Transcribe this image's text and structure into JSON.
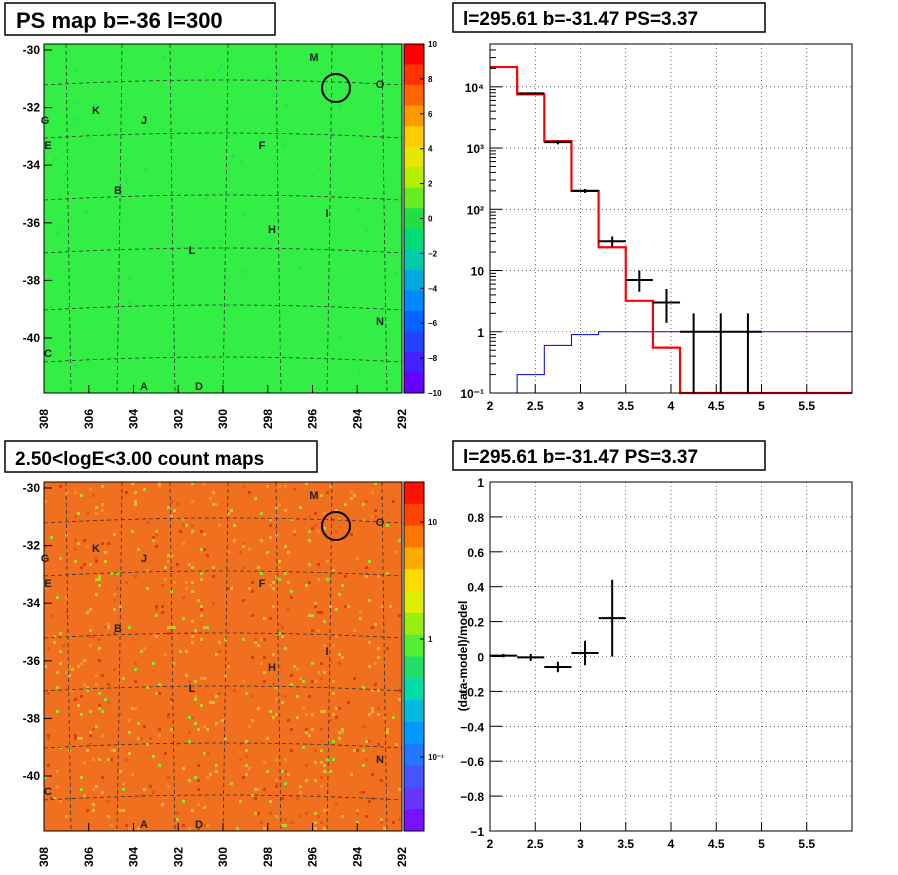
{
  "panels": {
    "ps_map_title": "PS map b=-36 l=300",
    "count_map_title": "2.50<logE<3.00 count maps",
    "spectrum_title": "l=295.61 b=-31.47 PS=3.37",
    "residual_title": "l=295.61 b=-31.47 PS=3.37"
  },
  "maps": {
    "x_ticks": [
      "308",
      "306",
      "304",
      "302",
      "300",
      "298",
      "296",
      "294",
      "292"
    ],
    "y_ticks": [
      "-30",
      "-32",
      "-34",
      "-36",
      "-38",
      "-40"
    ],
    "ps_colorbar_ticks": [
      "10",
      "8",
      "6",
      "4",
      "2",
      "0",
      "−2",
      "−4",
      "−6",
      "−8",
      "−10"
    ],
    "count_colorbar_ticks": [
      "10",
      "1",
      "10⁻¹"
    ],
    "sources": [
      "M",
      "O",
      "G",
      "K",
      "J",
      "E",
      "F",
      "B",
      "I",
      "H",
      "L",
      "N",
      "C",
      "A",
      "D"
    ],
    "colors": {
      "ps_background": "#33ee44",
      "count_background": "#f07020",
      "circle": "#000000"
    }
  },
  "chart_data": [
    {
      "type": "line",
      "title": "l=295.61 b=-31.47 PS=3.37",
      "xlim": [
        2,
        6
      ],
      "ylim": [
        0.1,
        50000
      ],
      "yscale": "log",
      "grid": true,
      "x_ticks": [
        "2",
        "2.5",
        "3",
        "3.5",
        "4",
        "4.5",
        "5",
        "5.5"
      ],
      "y_ticks": [
        "10⁻¹",
        "1",
        "10",
        "10²",
        "10³",
        "10⁴"
      ],
      "series": [
        {
          "color": "#ff0000",
          "edges": [
            2,
            2.3,
            2.6,
            2.9,
            3.2,
            3.5,
            3.8,
            4.1,
            4.4,
            6
          ],
          "values": [
            21000,
            7500,
            1300,
            200,
            24,
            3.2,
            0.55,
            0.1,
            0.1
          ]
        },
        {
          "color": "#0000cc",
          "edges": [
            2,
            2.3,
            2.6,
            2.9,
            3.2,
            3.5,
            6
          ],
          "values": [
            0.1,
            0.2,
            0.6,
            0.9,
            1.0,
            1.0
          ]
        },
        {
          "color": "#000000",
          "points": [
            {
              "x": 2.45,
              "y": 7800,
              "xerr": 0.15,
              "ylo": 7500,
              "yhi": 8100
            },
            {
              "x": 2.75,
              "y": 1250,
              "xerr": 0.15,
              "ylo": 1150,
              "yhi": 1350
            },
            {
              "x": 3.05,
              "y": 200,
              "xerr": 0.15,
              "ylo": 185,
              "yhi": 215
            },
            {
              "x": 3.35,
              "y": 30,
              "xerr": 0.15,
              "ylo": 24,
              "yhi": 36
            },
            {
              "x": 3.65,
              "y": 7,
              "xerr": 0.15,
              "ylo": 4.5,
              "yhi": 10
            },
            {
              "x": 3.95,
              "y": 3,
              "xerr": 0.15,
              "ylo": 1.4,
              "yhi": 5
            },
            {
              "x": 4.25,
              "y": 1,
              "xerr": 0.15,
              "ylo": 0.1,
              "yhi": 2
            },
            {
              "x": 4.55,
              "y": 1,
              "xerr": 0.15,
              "ylo": 0.1,
              "yhi": 2
            },
            {
              "x": 4.85,
              "y": 1,
              "xerr": 0.15,
              "ylo": 0.1,
              "yhi": 2
            }
          ]
        }
      ]
    },
    {
      "type": "scatter",
      "title": "l=295.61 b=-31.47 PS=3.37",
      "ylabel": "(data-model)/model",
      "xlim": [
        2,
        6
      ],
      "ylim": [
        -1,
        1
      ],
      "grid": true,
      "x_ticks": [
        "2",
        "2.5",
        "3",
        "3.5",
        "4",
        "4.5",
        "5",
        "5.5"
      ],
      "y_ticks": [
        "1",
        "0.8",
        "0.6",
        "0.4",
        "0.2",
        "0",
        "−0.2",
        "−0.4",
        "−0.6",
        "−0.8",
        "−1"
      ],
      "points": [
        {
          "x": 2.15,
          "y": 0.005,
          "xerr": 0.15,
          "yerr": 0.01
        },
        {
          "x": 2.45,
          "y": -0.005,
          "xerr": 0.15,
          "yerr": 0.02
        },
        {
          "x": 2.75,
          "y": -0.06,
          "xerr": 0.15,
          "yerr": 0.03
        },
        {
          "x": 3.05,
          "y": 0.02,
          "xerr": 0.15,
          "yerr": 0.07
        },
        {
          "x": 3.35,
          "y": 0.22,
          "xerr": 0.15,
          "yerr": 0.22
        }
      ]
    }
  ]
}
